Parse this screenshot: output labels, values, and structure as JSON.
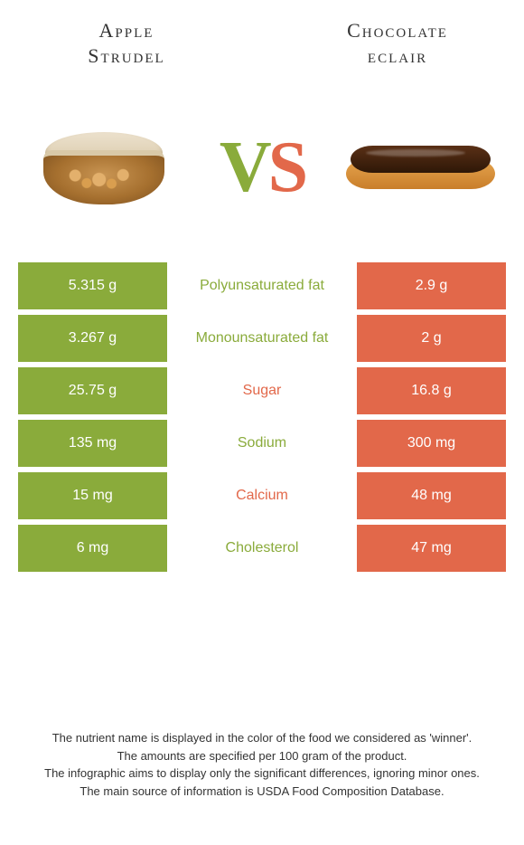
{
  "header": {
    "left_title_line1": "Apple",
    "left_title_line2": "Strudel",
    "right_title_line1": "Chocolate",
    "right_title_line2": "eclair"
  },
  "vs": {
    "v": "V",
    "s": "S"
  },
  "colors": {
    "left": "#8aab3b",
    "right": "#e2684a"
  },
  "rows": [
    {
      "left": "5.315 g",
      "label": "Polyunsaturated fat",
      "right": "2.9 g",
      "winner": "left"
    },
    {
      "left": "3.267 g",
      "label": "Monounsaturated fat",
      "right": "2 g",
      "winner": "left"
    },
    {
      "left": "25.75 g",
      "label": "Sugar",
      "right": "16.8 g",
      "winner": "right"
    },
    {
      "left": "135 mg",
      "label": "Sodium",
      "right": "300 mg",
      "winner": "left"
    },
    {
      "left": "15 mg",
      "label": "Calcium",
      "right": "48 mg",
      "winner": "right"
    },
    {
      "left": "6 mg",
      "label": "Cholesterol",
      "right": "47 mg",
      "winner": "left"
    }
  ],
  "footer": {
    "line1": "The nutrient name is displayed in the color of the food we considered as 'winner'.",
    "line2": "The amounts are specified per 100 gram of the product.",
    "line3": "The infographic aims to display only the significant differences, ignoring minor ones.",
    "line4": "The main source of information is USDA Food Composition Database."
  }
}
